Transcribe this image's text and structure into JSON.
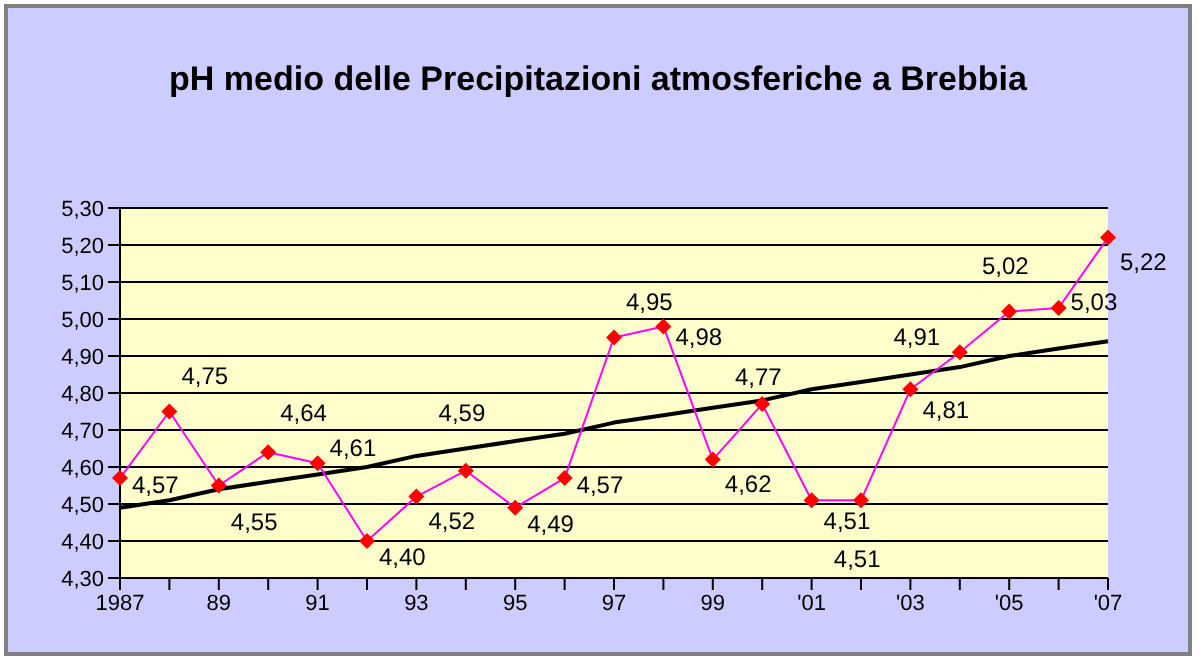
{
  "chart_data": {
    "type": "line",
    "title": "pH medio delle Precipitazioni atmosferiche a Brebbia",
    "categories": [
      "1987",
      null,
      "89",
      null,
      "91",
      null,
      "93",
      null,
      "95",
      null,
      "97",
      null,
      "99",
      null,
      "'01",
      null,
      "'03",
      null,
      "'05",
      null,
      "'07"
    ],
    "series": [
      {
        "type": "line",
        "color": "#ff00ff",
        "marker": "diamond",
        "values": [
          4.57,
          4.75,
          4.55,
          4.64,
          4.61,
          4.4,
          4.52,
          4.59,
          4.49,
          4.57,
          4.95,
          4.98,
          4.62,
          4.77,
          4.51,
          4.51,
          4.81,
          4.91,
          5.02,
          5.03,
          5.22
        ],
        "value_labels": [
          "4,57",
          "4,75",
          "4,55",
          "4,64",
          "4,61",
          "4,40",
          "4,52",
          "4,59",
          "4,49",
          "4,57",
          "4,95",
          "4,98",
          "4,62",
          "4,77",
          "4,51",
          "4,51",
          "4,81",
          "4,91",
          "5,02",
          "5,03",
          "5,22"
        ]
      },
      {
        "type": "line",
        "color": "#000000",
        "marker": "none",
        "values": [
          4.49,
          4.51,
          4.54,
          4.56,
          4.58,
          4.6,
          4.63,
          4.65,
          4.67,
          4.69,
          4.72,
          4.74,
          4.76,
          4.78,
          4.81,
          4.83,
          4.85,
          4.87,
          4.9,
          4.92,
          4.94
        ]
      }
    ],
    "ylim": [
      4.3,
      5.3
    ],
    "yticks": [
      {
        "value": 4.3,
        "label": "4,30"
      },
      {
        "value": 4.4,
        "label": "4,40"
      },
      {
        "value": 4.5,
        "label": "4,50"
      },
      {
        "value": 4.6,
        "label": "4,60"
      },
      {
        "value": 4.7,
        "label": "4,70"
      },
      {
        "value": 4.8,
        "label": "4,80"
      },
      {
        "value": 4.9,
        "label": "4,90"
      },
      {
        "value": 5.0,
        "label": "5,00"
      },
      {
        "value": 5.1,
        "label": "5,10"
      },
      {
        "value": 5.2,
        "label": "5,20"
      },
      {
        "value": 5.3,
        "label": "5,30"
      }
    ],
    "grid": "y"
  }
}
